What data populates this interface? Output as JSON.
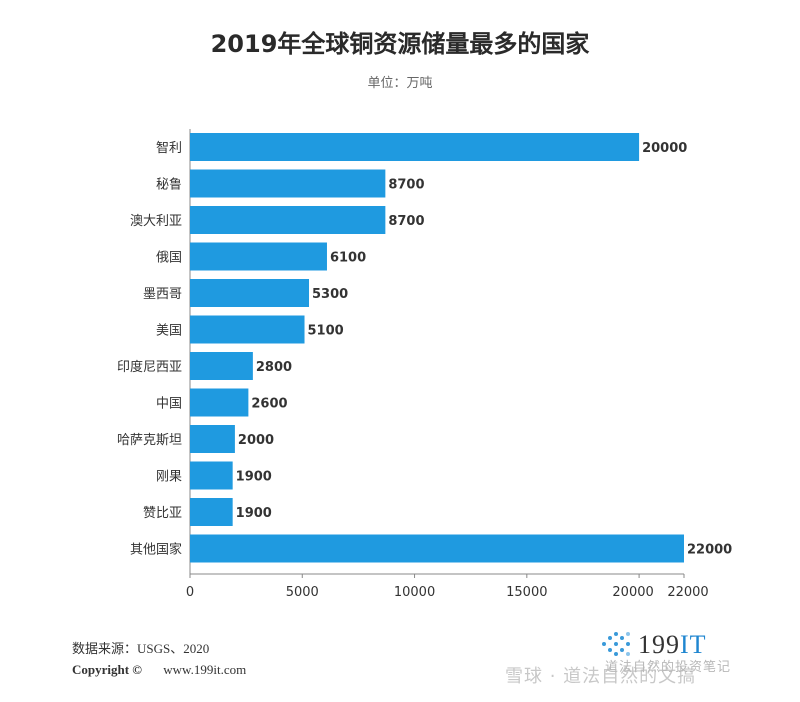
{
  "chart_data": {
    "type": "bar",
    "orientation": "horizontal",
    "title": "2019年全球铜资源储量最多的国家",
    "subtitle": "单位：万吨",
    "categories": [
      "智利",
      "秘鲁",
      "澳大利亚",
      "俄国",
      "墨西哥",
      "美国",
      "印度尼西亚",
      "中国",
      "哈萨克斯坦",
      "刚果",
      "赞比亚",
      "其他国家"
    ],
    "values": [
      20000,
      8700,
      8700,
      6100,
      5300,
      5100,
      2800,
      2600,
      2000,
      1900,
      1900,
      22000
    ],
    "value_labels": [
      "20000",
      "8700",
      "8700",
      "6100",
      "5300",
      "5100",
      "2800",
      "2600",
      "2000",
      "1900",
      "1900",
      "22000"
    ],
    "xlim": [
      0,
      22000
    ],
    "xticks": [
      0,
      5000,
      10000,
      15000,
      20000,
      22000
    ],
    "xtick_labels": [
      "0",
      "5000",
      "10000",
      "15000",
      "20000",
      "22000"
    ],
    "bar_color": "#1f9ae0",
    "grid": false,
    "legend": "none"
  },
  "footer": {
    "source": "数据来源：USGS、2020",
    "copyright": "Copyright ©",
    "url": "www.199it.com",
    "logo_text": "199",
    "logo_text_accent": "IT"
  },
  "watermark": {
    "main": "雪球 · 道法自然的文搞",
    "sub": "道法自然的投资笔记"
  }
}
